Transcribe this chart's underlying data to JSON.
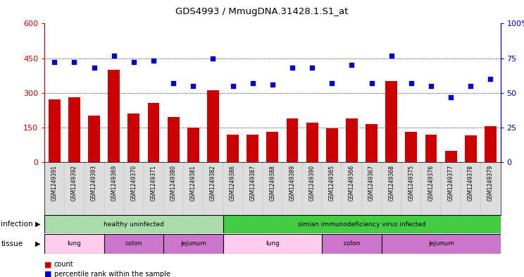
{
  "title": "GDS4993 / MmugDNA.31428.1.S1_at",
  "samples": [
    "GSM1249391",
    "GSM1249392",
    "GSM1249393",
    "GSM1249369",
    "GSM1249370",
    "GSM1249371",
    "GSM1249380",
    "GSM1249381",
    "GSM1249382",
    "GSM1249386",
    "GSM1249387",
    "GSM1249388",
    "GSM1249389",
    "GSM1249390",
    "GSM1249365",
    "GSM1249366",
    "GSM1249367",
    "GSM1249368",
    "GSM1249375",
    "GSM1249376",
    "GSM1249377",
    "GSM1249378",
    "GSM1249379"
  ],
  "counts": [
    270,
    280,
    200,
    400,
    210,
    255,
    195,
    150,
    310,
    120,
    120,
    130,
    190,
    170,
    145,
    190,
    165,
    350,
    130,
    120,
    50,
    115,
    155
  ],
  "percentiles": [
    72,
    72,
    68,
    77,
    72,
    73,
    57,
    55,
    75,
    55,
    57,
    56,
    68,
    68,
    57,
    70,
    57,
    77,
    57,
    55,
    47,
    55,
    60
  ],
  "bar_color": "#cc0000",
  "scatter_color": "#0000cc",
  "left_axis_color": "#cc0000",
  "right_axis_color": "#0000cc",
  "ylim_left": [
    0,
    600
  ],
  "ylim_right": [
    0,
    100
  ],
  "yticks_left": [
    0,
    150,
    300,
    450,
    600
  ],
  "ytick_labels_left": [
    "0",
    "150",
    "300",
    "450",
    "600"
  ],
  "yticks_right": [
    0,
    25,
    50,
    75,
    100
  ],
  "ytick_labels_right": [
    "0",
    "25",
    "50",
    "75",
    "100%"
  ],
  "infection_groups": [
    {
      "label": "healthy uninfected",
      "start": 0,
      "end": 9,
      "color": "#aaddaa"
    },
    {
      "label": "simian immunodeficiency virus infected",
      "start": 9,
      "end": 23,
      "color": "#44cc44"
    }
  ],
  "tissue_groups": [
    {
      "label": "lung",
      "start": 0,
      "end": 3,
      "color": "#ffccee"
    },
    {
      "label": "colon",
      "start": 3,
      "end": 6,
      "color": "#cc77cc"
    },
    {
      "label": "jejunum",
      "start": 6,
      "end": 9,
      "color": "#cc77cc"
    },
    {
      "label": "lung",
      "start": 9,
      "end": 14,
      "color": "#ffccee"
    },
    {
      "label": "colon",
      "start": 14,
      "end": 17,
      "color": "#cc77cc"
    },
    {
      "label": "jejunum",
      "start": 17,
      "end": 23,
      "color": "#cc77cc"
    }
  ],
  "legend_items": [
    {
      "label": "count",
      "color": "#cc0000"
    },
    {
      "label": "percentile rank within the sample",
      "color": "#0000cc"
    }
  ],
  "infection_label": "infection",
  "tissue_label": "tissue",
  "xtick_bg": "#dddddd"
}
